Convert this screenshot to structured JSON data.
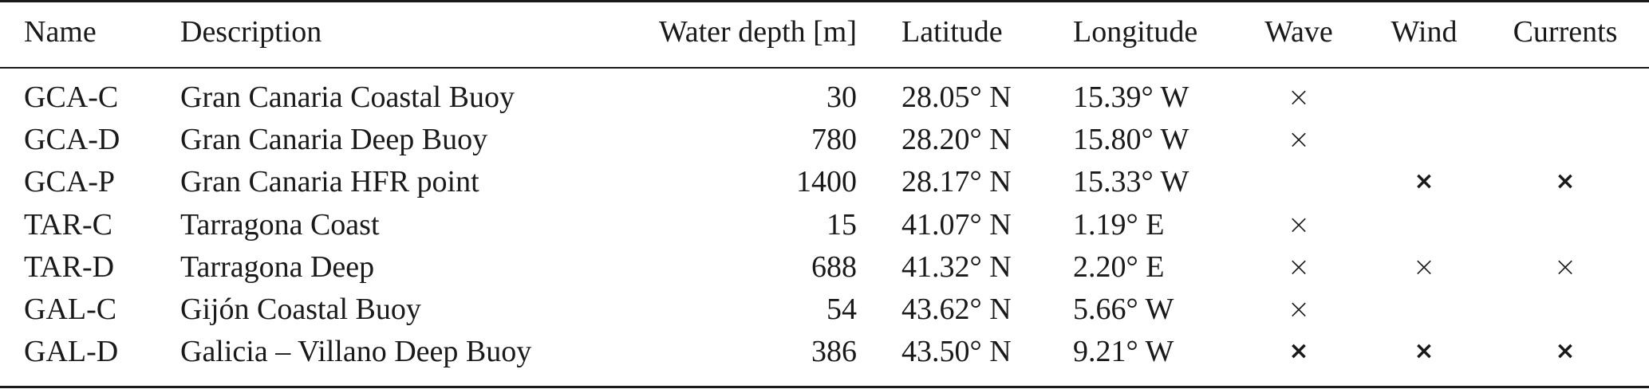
{
  "table": {
    "headers": {
      "name": "Name",
      "description": "Description",
      "depth": "Water depth [m]",
      "latitude": "Latitude",
      "longitude": "Longitude",
      "wave": "Wave",
      "wind": "Wind",
      "currents": "Currents"
    },
    "rows": [
      {
        "name": "GCA-C",
        "description": "Gran Canaria Coastal Buoy",
        "depth": "30",
        "latitude": "28.05° N",
        "longitude": "15.39° W",
        "wave": "×",
        "wind": "",
        "currents": "",
        "wave_style": "thin",
        "wind_style": "",
        "currents_style": ""
      },
      {
        "name": "GCA-D",
        "description": "Gran Canaria Deep Buoy",
        "depth": "780",
        "latitude": "28.20° N",
        "longitude": "15.80° W",
        "wave": "×",
        "wind": "",
        "currents": "",
        "wave_style": "thin",
        "wind_style": "",
        "currents_style": ""
      },
      {
        "name": "GCA-P",
        "description": "Gran Canaria HFR point",
        "depth": "1400",
        "latitude": "28.17° N",
        "longitude": "15.33° W",
        "wave": "",
        "wind": "×",
        "currents": "×",
        "wave_style": "",
        "wind_style": "bold",
        "currents_style": "bold"
      },
      {
        "name": "TAR-C",
        "description": "Tarragona Coast",
        "depth": "15",
        "latitude": "41.07° N",
        "longitude": "1.19° E",
        "wave": "×",
        "wind": "",
        "currents": "",
        "wave_style": "thin",
        "wind_style": "",
        "currents_style": ""
      },
      {
        "name": "TAR-D",
        "description": "Tarragona Deep",
        "depth": "688",
        "latitude": "41.32° N",
        "longitude": "2.20° E",
        "wave": "×",
        "wind": "×",
        "currents": "×",
        "wave_style": "thin",
        "wind_style": "thin",
        "currents_style": "thin"
      },
      {
        "name": "GAL-C",
        "description": "Gijón Coastal Buoy",
        "depth": "54",
        "latitude": "43.62° N",
        "longitude": "5.66° W",
        "wave": "×",
        "wind": "",
        "currents": "",
        "wave_style": "thin",
        "wind_style": "",
        "currents_style": ""
      },
      {
        "name": "GAL-D",
        "description": "Galicia – Villano Deep Buoy",
        "depth": "386",
        "latitude": "43.50° N",
        "longitude": "9.21° W",
        "wave": "×",
        "wind": "×",
        "currents": "×",
        "wave_style": "bold",
        "wind_style": "bold",
        "currents_style": "bold"
      }
    ]
  }
}
